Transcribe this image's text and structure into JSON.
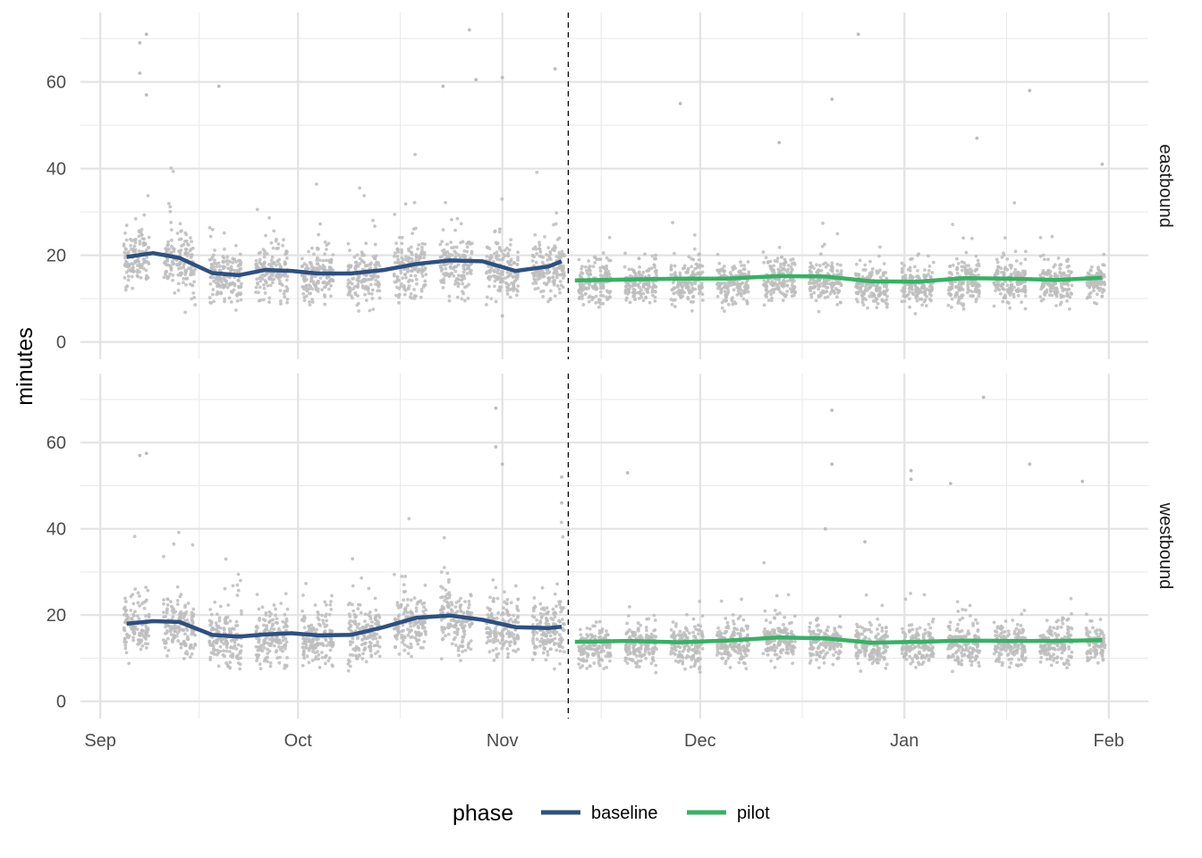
{
  "chart_data": {
    "type": "scatter",
    "ylabel": "minutes",
    "xlabel": "",
    "x_ticks": [
      "Sep",
      "Oct",
      "Nov",
      "Dec",
      "Jan",
      "Feb"
    ],
    "x_tick_dates": [
      "2023-09-01",
      "2023-10-01",
      "2023-11-01",
      "2023-12-01",
      "2024-01-01",
      "2024-02-01"
    ],
    "x_range": [
      "2023-08-29",
      "2024-02-07"
    ],
    "y_ticks": [
      0,
      20,
      40,
      60
    ],
    "ylim": [
      -4,
      76
    ],
    "grid": true,
    "phase_change_date": "2023-11-11",
    "point_color": "#bdbdbd",
    "legend": {
      "title": "phase",
      "position": "bottom",
      "entries": [
        {
          "label": "baseline",
          "color": "#2d5082"
        },
        {
          "label": "pilot",
          "color": "#35b263"
        }
      ]
    },
    "panels": [
      {
        "strip": "eastbound",
        "trend": [
          {
            "phase": "baseline",
            "color": "#2d5082",
            "x": [
              "2023-09-05",
              "2023-09-09",
              "2023-09-13",
              "2023-09-18",
              "2023-09-22",
              "2023-09-26",
              "2023-09-30",
              "2023-10-04",
              "2023-10-09",
              "2023-10-14",
              "2023-10-19",
              "2023-10-24",
              "2023-10-29",
              "2023-11-03",
              "2023-11-08",
              "2023-11-10"
            ],
            "y": [
              19.6,
              20.5,
              19.4,
              15.9,
              15.4,
              16.6,
              16.4,
              15.8,
              15.8,
              16.6,
              18.0,
              18.8,
              18.6,
              16.4,
              17.4,
              18.6
            ]
          },
          {
            "phase": "pilot",
            "color": "#35b263",
            "x": [
              "2023-11-12",
              "2023-11-20",
              "2023-11-28",
              "2023-12-05",
              "2023-12-13",
              "2023-12-20",
              "2023-12-27",
              "2024-01-03",
              "2024-01-10",
              "2024-01-17",
              "2024-01-24",
              "2024-01-31"
            ],
            "y": [
              14.2,
              14.4,
              14.6,
              14.6,
              15.2,
              15.1,
              14.0,
              13.9,
              14.7,
              14.6,
              14.3,
              14.8
            ]
          }
        ],
        "outliers": [
          {
            "x": "2023-09-07",
            "y": 69
          },
          {
            "x": "2023-09-08",
            "y": 71
          },
          {
            "x": "2023-09-07",
            "y": 62
          },
          {
            "x": "2023-09-08",
            "y": 57
          },
          {
            "x": "2023-09-19",
            "y": 59
          },
          {
            "x": "2023-10-27",
            "y": 72
          },
          {
            "x": "2023-10-23",
            "y": 59
          },
          {
            "x": "2023-10-28",
            "y": 60.5
          },
          {
            "x": "2023-11-01",
            "y": 61
          },
          {
            "x": "2023-11-09",
            "y": 63
          },
          {
            "x": "2023-12-25",
            "y": 71
          },
          {
            "x": "2024-01-20",
            "y": 58
          },
          {
            "x": "2023-11-28",
            "y": 55
          },
          {
            "x": "2023-12-21",
            "y": 56
          },
          {
            "x": "2024-01-12",
            "y": 47
          },
          {
            "x": "2024-01-31",
            "y": 41
          },
          {
            "x": "2023-12-13",
            "y": 46
          },
          {
            "x": "2023-11-01",
            "y": 6
          }
        ]
      },
      {
        "strip": "westbound",
        "trend": [
          {
            "phase": "baseline",
            "color": "#2d5082",
            "x": [
              "2023-09-05",
              "2023-09-09",
              "2023-09-13",
              "2023-09-18",
              "2023-09-22",
              "2023-09-26",
              "2023-09-30",
              "2023-10-04",
              "2023-10-09",
              "2023-10-14",
              "2023-10-19",
              "2023-10-24",
              "2023-10-29",
              "2023-11-03",
              "2023-11-08",
              "2023-11-10"
            ],
            "y": [
              18.0,
              18.6,
              18.4,
              15.4,
              15.0,
              15.5,
              15.8,
              15.3,
              15.4,
              17.2,
              19.4,
              19.9,
              18.9,
              17.2,
              17.0,
              17.3
            ]
          },
          {
            "phase": "pilot",
            "color": "#35b263",
            "x": [
              "2023-11-12",
              "2023-11-20",
              "2023-11-28",
              "2023-12-05",
              "2023-12-13",
              "2023-12-20",
              "2023-12-27",
              "2024-01-03",
              "2024-01-10",
              "2024-01-17",
              "2024-01-24",
              "2024-01-31"
            ],
            "y": [
              13.8,
              14.0,
              13.7,
              14.1,
              14.8,
              14.6,
              13.6,
              13.8,
              14.1,
              14.0,
              14.0,
              14.2
            ]
          }
        ],
        "outliers": [
          {
            "x": "2023-09-08",
            "y": 57.5
          },
          {
            "x": "2023-09-07",
            "y": 57
          },
          {
            "x": "2023-10-31",
            "y": 68
          },
          {
            "x": "2023-10-31",
            "y": 59
          },
          {
            "x": "2023-11-01",
            "y": 55
          },
          {
            "x": "2023-11-10",
            "y": 52
          },
          {
            "x": "2023-11-10",
            "y": 46
          },
          {
            "x": "2023-12-21",
            "y": 67.5
          },
          {
            "x": "2024-01-13",
            "y": 70.5
          },
          {
            "x": "2023-12-21",
            "y": 55
          },
          {
            "x": "2024-01-02",
            "y": 53.5
          },
          {
            "x": "2024-01-02",
            "y": 51.5
          },
          {
            "x": "2024-01-08",
            "y": 50.5
          },
          {
            "x": "2024-01-20",
            "y": 55
          },
          {
            "x": "2024-01-28",
            "y": 51
          },
          {
            "x": "2023-11-20",
            "y": 53
          },
          {
            "x": "2023-12-26",
            "y": 37
          },
          {
            "x": "2023-12-20",
            "y": 40
          }
        ]
      }
    ]
  }
}
